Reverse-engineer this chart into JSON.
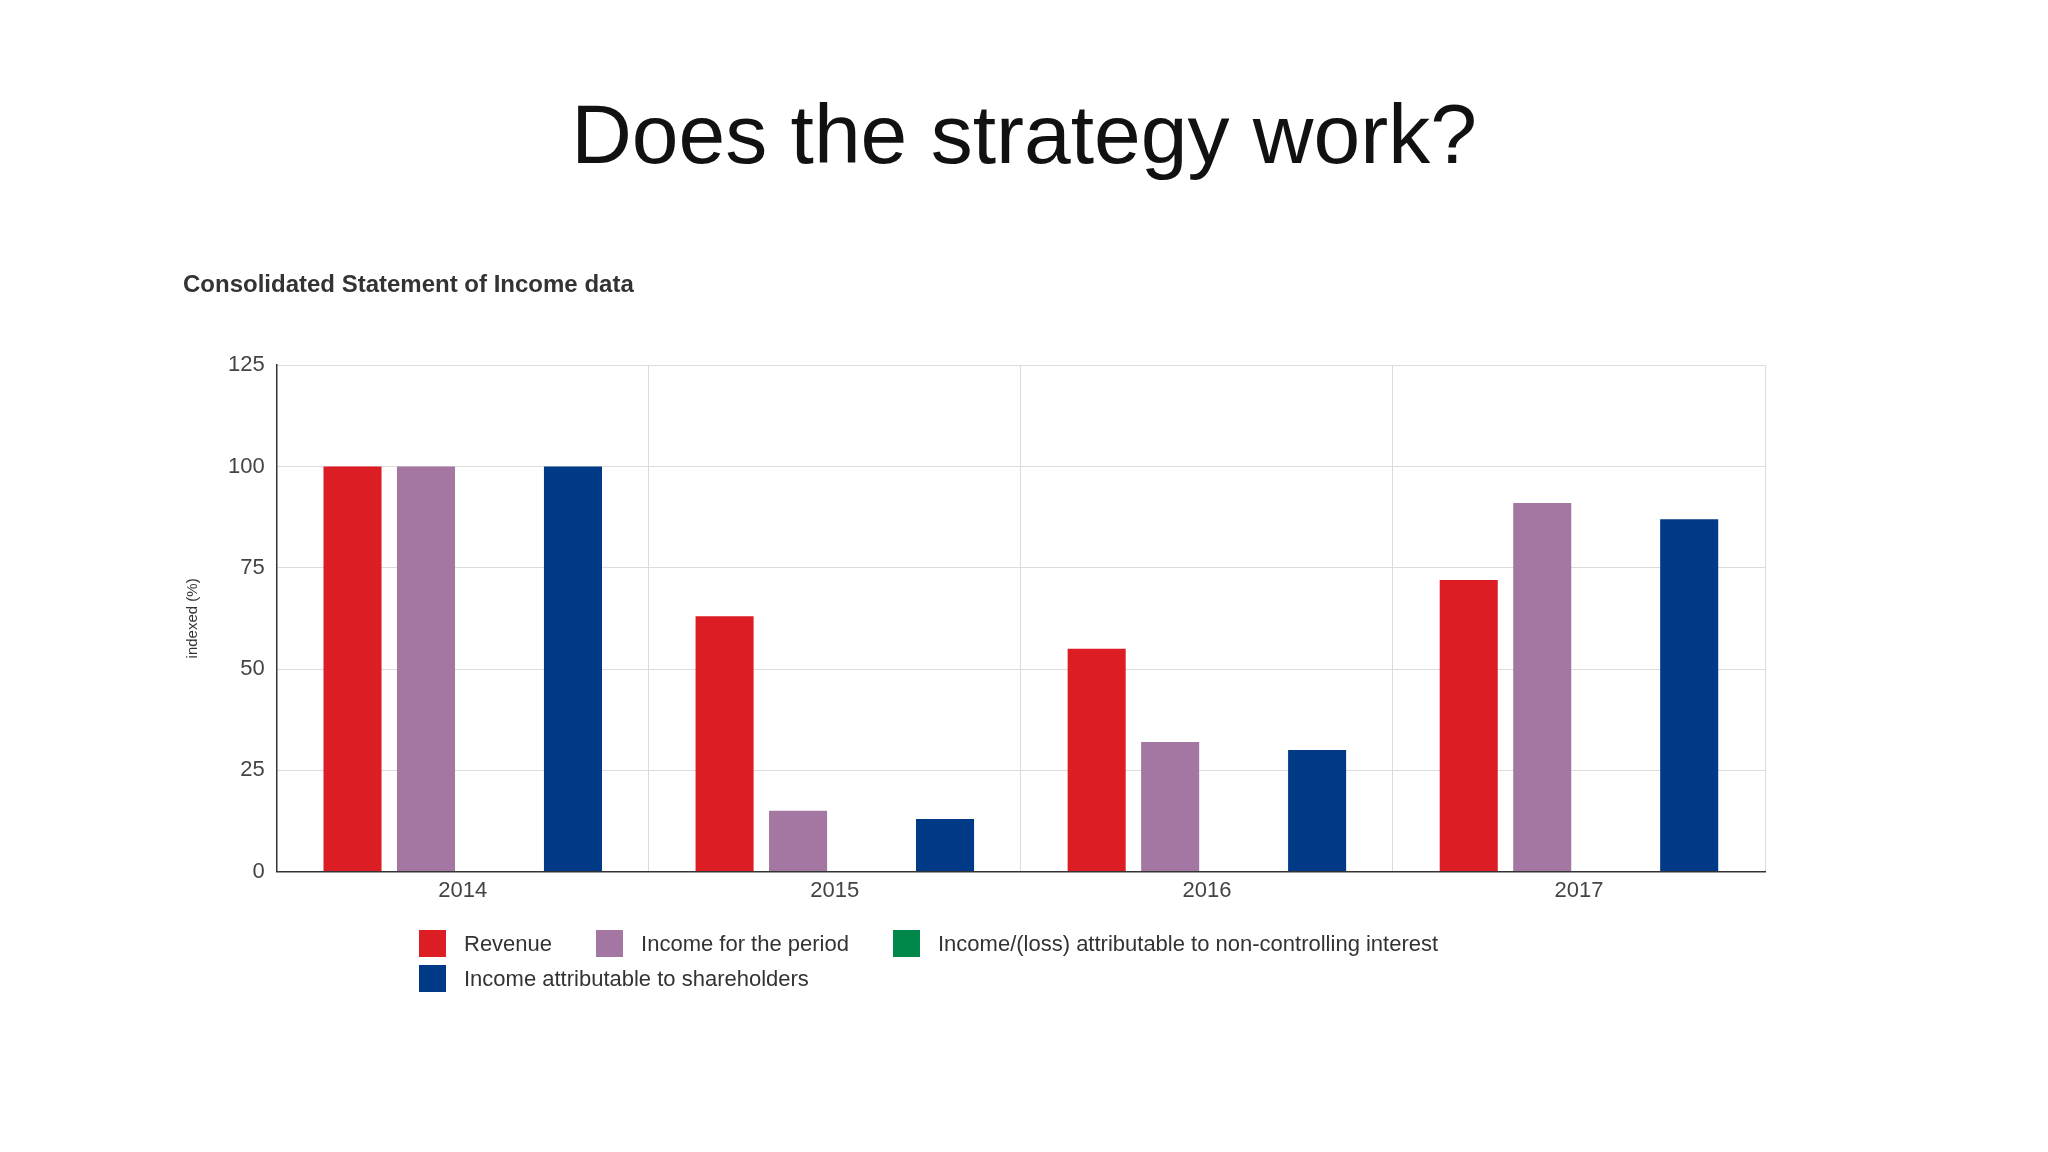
{
  "chart_data": {
    "type": "bar",
    "title": "Does the strategy work?",
    "subtitle": "Consolidated Statement of Income data",
    "ylabel": "indexed (%)",
    "categories": [
      "2014",
      "2015",
      "2016",
      "2017"
    ],
    "series": [
      {
        "name": "Revenue",
        "color": "#dd1d24",
        "values": [
          100,
          63,
          55,
          72
        ]
      },
      {
        "name": "Income for the period",
        "color": "#a377a1",
        "values": [
          100,
          15,
          32,
          91
        ]
      },
      {
        "name": "Income/(loss) attributable to non-controlling interest",
        "color": "#00884a",
        "values": [
          null,
          null,
          null,
          null
        ]
      },
      {
        "name": "Income attributable to shareholders",
        "color": "#003a87",
        "values": [
          100,
          13,
          30,
          87
        ]
      }
    ],
    "ylim": [
      0,
      125
    ],
    "yticks": [
      0,
      25,
      50,
      75,
      100,
      125
    ],
    "grid": true,
    "legend": "bottom"
  }
}
